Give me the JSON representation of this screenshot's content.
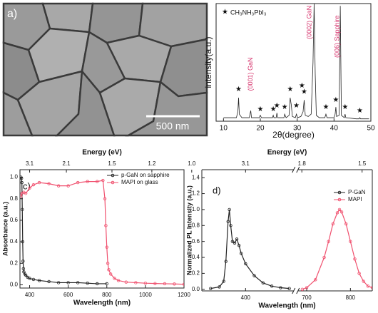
{
  "panel_a": {
    "label": "a)",
    "scale_bar": "500 nm"
  },
  "chart_data": [
    {
      "type": "line",
      "xlabel": "2θ(degree)",
      "ylabel": "intensity(a.u.)",
      "legend_label": "CH₃NH₃PbI₃",
      "marker_symbol": "★",
      "xlim": [
        8,
        50
      ],
      "xticks": [
        10,
        20,
        30,
        40,
        50
      ],
      "ylim": [
        0,
        1
      ],
      "series": [
        {
          "color": "#222222",
          "x": [
            10,
            12,
            13.5,
            13.9,
            14.1,
            14.3,
            15,
            17,
            17.4,
            17.6,
            18,
            19.7,
            20,
            20.3,
            22,
            23.3,
            23.5,
            23.7,
            24.3,
            24.5,
            24.7,
            26,
            26.4,
            26.6,
            27,
            27.8,
            28.1,
            28.4,
            28.7,
            29.5,
            29.8,
            30.1,
            31,
            31.6,
            31.9,
            32.2,
            33,
            33.8,
            34.3,
            34.6,
            34.9,
            35.2,
            36,
            37.5,
            37.8,
            38.1,
            40,
            40.3,
            40.5,
            40.7,
            41.4,
            41.7,
            42,
            42.8,
            43,
            43.2,
            46,
            46.8,
            47,
            47.2,
            49.5
          ],
          "values": [
            0.03,
            0.03,
            0.03,
            0.08,
            0.2,
            0.06,
            0.03,
            0.03,
            0.09,
            0.03,
            0.03,
            0.03,
            0.05,
            0.03,
            0.03,
            0.03,
            0.05,
            0.03,
            0.03,
            0.07,
            0.03,
            0.03,
            0.03,
            0.06,
            0.03,
            0.05,
            0.2,
            0.14,
            0.04,
            0.03,
            0.06,
            0.03,
            0.04,
            0.08,
            0.18,
            0.05,
            0.04,
            0.06,
            0.5,
            1.0,
            0.4,
            0.05,
            0.03,
            0.03,
            0.06,
            0.03,
            0.03,
            0.06,
            0.12,
            0.04,
            0.05,
            0.98,
            0.05,
            0.03,
            0.06,
            0.03,
            0.02,
            0.02,
            0.03,
            0.02,
            0.02
          ]
        }
      ],
      "stars": {
        "x": [
          14.1,
          20,
          23.5,
          24.5,
          26.6,
          28.1,
          29.8,
          31.3,
          31.9,
          37.8,
          40.5,
          43,
          47
        ],
        "y": [
          0.27,
          0.1,
          0.1,
          0.13,
          0.12,
          0.27,
          0.13,
          0.3,
          0.25,
          0.12,
          0.18,
          0.12,
          0.09
        ]
      },
      "annotation_color": "#d6336c",
      "annotations": [
        {
          "text": "(0001) GaN",
          "x": 17.4,
          "y": 0.4
        },
        {
          "text": "(0002) GaN",
          "x": 33.4,
          "y": 0.84
        },
        {
          "text": "(006) Sapphire",
          "x": 40.9,
          "y": 0.72
        }
      ]
    },
    {
      "type": "line",
      "panel_label": "c)",
      "xlabel": "Wavelength (nm)",
      "ylabel": "Absorbance (a.u.)",
      "x2label": "Energy (eV)",
      "xlim": [
        350,
        1200
      ],
      "xticks": [
        400,
        600,
        800,
        1000,
        1200
      ],
      "x2ticks": [
        3.1,
        2.1,
        1.5,
        1.2,
        {
          "value": 1,
          "label": "1.0"
        }
      ],
      "ylim": [
        -0.03,
        1.07
      ],
      "yticks": [
        {
          "value": 0,
          "label": "0.0"
        },
        0.2,
        0.4,
        0.6,
        0.8,
        {
          "value": 1,
          "label": "1.0"
        }
      ],
      "legend": "upper right",
      "markers": true,
      "series": [
        {
          "name": "p-GaN on sapphire",
          "color": "#222222",
          "x": [
            355,
            358,
            360,
            362,
            364,
            366,
            368,
            370,
            375,
            380,
            390,
            400,
            420,
            450,
            500,
            550,
            600,
            650,
            700,
            750,
            800
          ],
          "values": [
            1.0,
            0.99,
            0.95,
            0.7,
            0.4,
            0.22,
            0.15,
            0.12,
            0.1,
            0.09,
            0.07,
            0.06,
            0.05,
            0.04,
            0.03,
            0.02,
            0.02,
            0.02,
            0.015,
            0.01,
            0.01
          ]
        },
        {
          "name": "MAPI on glass",
          "color": "#f0506e",
          "x": [
            355,
            360,
            370,
            380,
            400,
            420,
            450,
            500,
            550,
            600,
            650,
            700,
            750,
            780,
            790,
            795,
            800,
            805,
            810,
            820,
            840,
            860,
            900,
            950,
            1000,
            1050,
            1100,
            1150,
            1200
          ],
          "values": [
            0.82,
            0.85,
            0.86,
            0.85,
            0.9,
            0.93,
            0.95,
            0.94,
            0.92,
            0.92,
            0.95,
            0.96,
            0.96,
            0.97,
            0.8,
            0.55,
            0.35,
            0.2,
            0.14,
            0.1,
            0.06,
            0.04,
            0.025,
            0.02,
            0.015,
            0.012,
            0.01,
            0.008,
            0.005
          ]
        }
      ]
    },
    {
      "type": "line",
      "panel_label": "d)",
      "xlabel": "Wavelength (nm)",
      "ylabel": "Normalized PL Intensity (a.u.)",
      "x2label": "Energy (eV)",
      "xlim": [
        300,
        850
      ],
      "xbreak": [
        510,
        680
      ],
      "xticks": [
        400,
        700,
        800
      ],
      "x2ticks": [
        3.1,
        1.8,
        1.5
      ],
      "ylim": [
        -0.02,
        1.5
      ],
      "yticks": [
        {
          "value": 0,
          "label": "0.0"
        },
        0.2,
        0.4,
        0.6,
        0.8,
        {
          "value": 1,
          "label": "1.0"
        },
        1.2,
        1.4
      ],
      "legend": "upper right",
      "markers": true,
      "series": [
        {
          "name": "P-GaN",
          "color": "#222222",
          "x": [
            320,
            340,
            350,
            355,
            360,
            363,
            366,
            370,
            375,
            380,
            385,
            390,
            400,
            420,
            440,
            460,
            480,
            500
          ],
          "values": [
            0.01,
            0.03,
            0.1,
            0.35,
            0.85,
            1.0,
            0.8,
            0.6,
            0.58,
            0.63,
            0.55,
            0.45,
            0.32,
            0.17,
            0.08,
            0.04,
            0.02,
            0.01
          ]
        },
        {
          "name": "MAPI",
          "color": "#f0506e",
          "x": [
            690,
            700,
            720,
            740,
            750,
            760,
            770,
            775,
            780,
            790,
            800,
            810,
            820,
            830,
            840,
            850
          ],
          "values": [
            0,
            0.02,
            0.12,
            0.4,
            0.6,
            0.82,
            0.96,
            1.0,
            0.97,
            0.82,
            0.6,
            0.38,
            0.2,
            0.1,
            0.04,
            0.02
          ]
        }
      ]
    }
  ]
}
